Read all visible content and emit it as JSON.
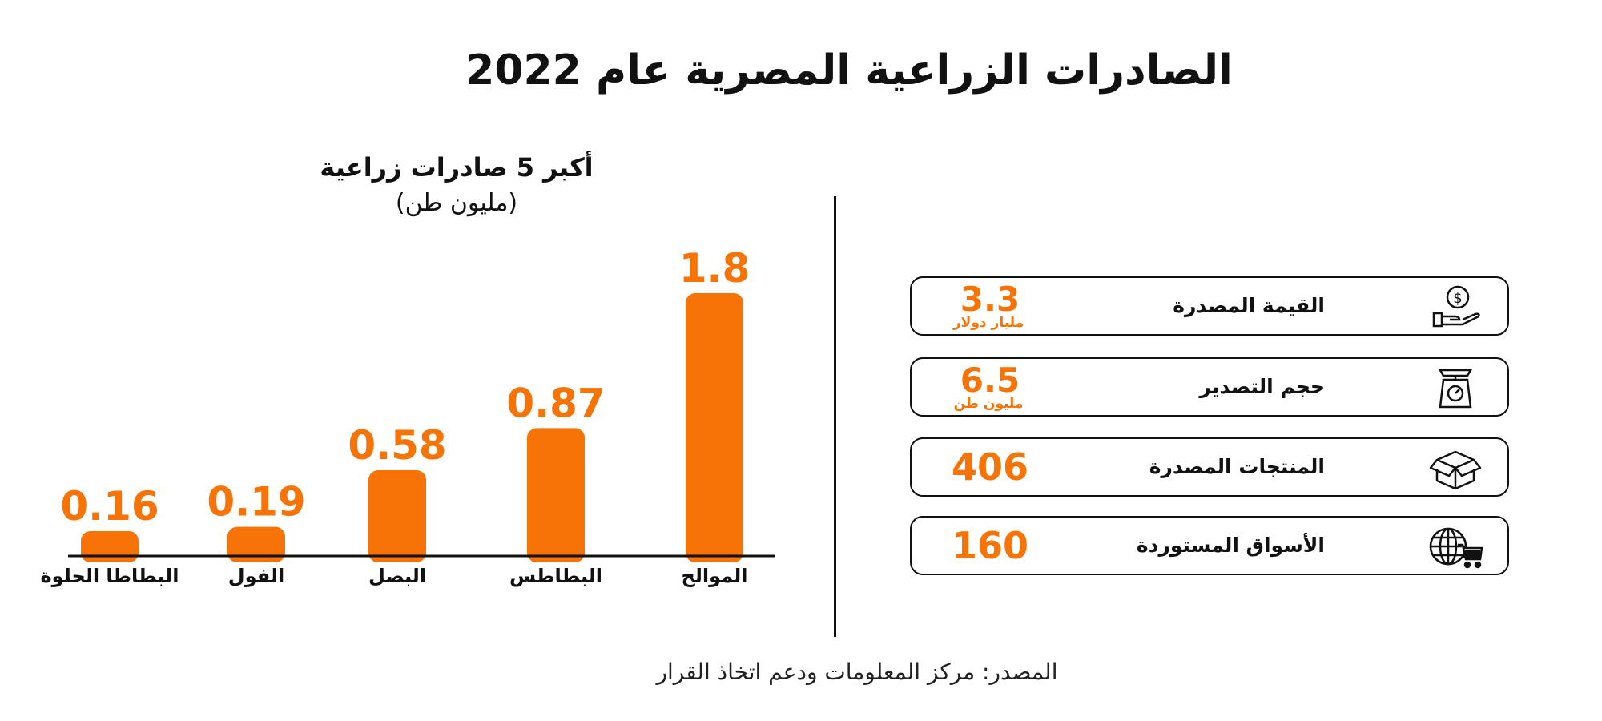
{
  "header": {
    "title": "الصادرات الزراعية المصرية عام 2022"
  },
  "chart_data": {
    "type": "bar",
    "title": "أكبر 5 صادرات زراعية",
    "subtitle": "(مليون طن)",
    "categories": [
      "البطاطا الحلوة",
      "الفول",
      "البصل",
      "البطاطس",
      "الموالح"
    ],
    "values": [
      0.16,
      0.19,
      0.58,
      0.87,
      1.8
    ],
    "value_labels": [
      "0.16",
      "0.19",
      "0.58",
      "0.87",
      "1.8"
    ],
    "bar_color": "#f77305",
    "grid": false,
    "legend": "none"
  },
  "stats": [
    {
      "label": "القيمة المصدرة",
      "value": "3.3",
      "unit": "مليار دولار",
      "icon": "money-hand-icon"
    },
    {
      "label": "حجم التصدير",
      "value": "6.5",
      "unit": "مليون طن",
      "icon": "scale-icon"
    },
    {
      "label": "المنتجات المصدرة",
      "value": "406",
      "unit": "",
      "icon": "box-icon"
    },
    {
      "label": "الأسواق المستوردة",
      "value": "160",
      "unit": "",
      "icon": "globe-cart-icon"
    }
  ],
  "footer": {
    "source": "المصدر: مركز المعلومات ودعم اتخاذ القرار"
  },
  "colors": {
    "accent": "#f77305",
    "text": "#111111"
  }
}
